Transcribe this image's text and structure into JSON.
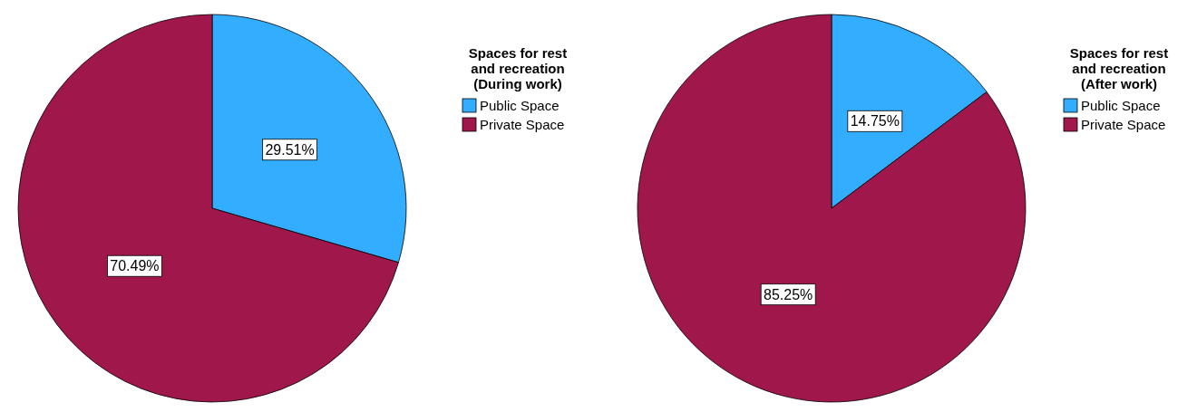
{
  "chart_data": [
    {
      "type": "pie",
      "legend_title": "Spaces for rest\nand recreation\n(During work)",
      "categories": [
        "Public Space",
        "Private Space"
      ],
      "values": [
        29.51,
        70.49
      ],
      "colors": [
        "#33adff",
        "#a0174c"
      ],
      "value_labels": [
        "29.51%",
        "70.49%"
      ],
      "legend": "right"
    },
    {
      "type": "pie",
      "legend_title": "Spaces for rest\nand recreation\n(After work)",
      "categories": [
        "Public Space",
        "Private Space"
      ],
      "values": [
        14.75,
        85.25
      ],
      "colors": [
        "#33adff",
        "#a0174c"
      ],
      "value_labels": [
        "14.75%",
        "85.25%"
      ],
      "legend": "right"
    }
  ]
}
